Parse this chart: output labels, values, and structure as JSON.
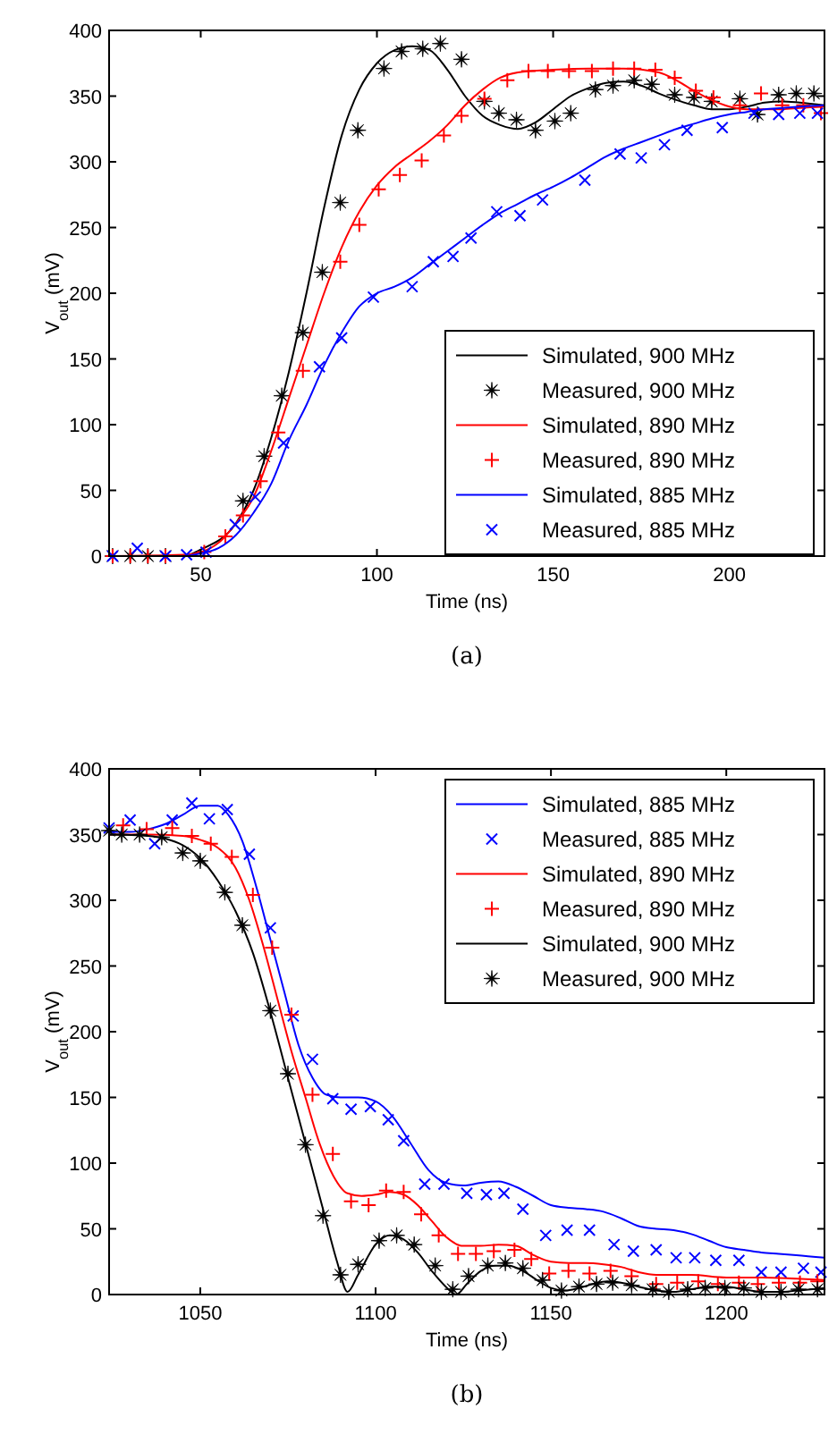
{
  "chart_data": [
    {
      "type": "line",
      "xlabel": "Time (ns)",
      "ylabel": "V$_{out}$ (mV)",
      "annotations": [
        "(a)"
      ],
      "xlim": [
        24,
        227
      ],
      "xticks": [
        50,
        100,
        150,
        200
      ],
      "ylim": [
        0,
        400
      ],
      "yticks": [
        0,
        50,
        100,
        150,
        200,
        250,
        300,
        350,
        400
      ],
      "grid": false,
      "legend": "bottom right",
      "series": [
        {
          "name": "Simulated, 900 MHz",
          "type": "line",
          "marker": "none",
          "color": "#000000",
          "x": [
            24,
            45,
            50,
            60,
            65,
            70,
            75,
            80,
            85,
            90,
            95,
            100,
            105,
            110,
            115,
            120,
            125,
            130,
            135,
            140,
            145,
            150,
            155,
            160,
            165,
            170,
            175,
            180,
            185,
            190,
            195,
            200,
            205,
            210,
            215,
            220,
            227
          ],
          "values": [
            0,
            0,
            5,
            25,
            50,
            90,
            140,
            200,
            265,
            320,
            355,
            375,
            385,
            388,
            385,
            370,
            350,
            335,
            328,
            325,
            330,
            340,
            350,
            356,
            360,
            361,
            358,
            352,
            347,
            343,
            340,
            340,
            342,
            345,
            346,
            345,
            343
          ]
        },
        {
          "name": "Measured, 900 MHz",
          "type": "scatter",
          "marker": "star",
          "color": "#000000",
          "x": [
            25,
            30,
            35,
            40,
            62,
            68,
            73,
            79,
            84.5,
            89.6,
            94.6,
            102,
            107,
            113,
            118,
            124,
            130.5,
            134.6,
            139.6,
            145,
            150.5,
            155,
            162,
            167,
            173,
            178,
            184.5,
            190,
            195,
            203,
            208,
            214,
            219,
            224
          ],
          "values": [
            0,
            0,
            0,
            0,
            42,
            76,
            122,
            170,
            216,
            269,
            324,
            371,
            384,
            386,
            390,
            378,
            346,
            337,
            332,
            324,
            331,
            337,
            355,
            358,
            362,
            359,
            351,
            349,
            346,
            348,
            336,
            351,
            352,
            352
          ]
        },
        {
          "name": "Simulated, 890 MHz",
          "type": "line",
          "marker": "none",
          "color": "#ff0000",
          "x": [
            24,
            45,
            50,
            55,
            60,
            65,
            70,
            75,
            80,
            85,
            90,
            95,
            100,
            105,
            110,
            115,
            120,
            125,
            130,
            135,
            140,
            150,
            160,
            170,
            180,
            185,
            190,
            195,
            200,
            205,
            210,
            215,
            220,
            227
          ],
          "values": [
            0,
            1,
            3,
            10,
            25,
            45,
            80,
            120,
            160,
            200,
            235,
            262,
            282,
            296,
            306,
            316,
            328,
            343,
            355,
            364,
            368,
            370,
            371,
            371,
            368,
            362,
            354,
            347,
            342,
            340,
            340,
            340,
            341,
            342
          ]
        },
        {
          "name": "Measured, 890 MHz",
          "type": "scatter",
          "marker": "cross",
          "color": "#ff0000",
          "x": [
            25,
            30,
            35,
            40,
            51,
            57,
            62,
            67,
            72,
            79,
            89.6,
            95,
            100.5,
            106.5,
            112.7,
            119,
            124,
            130.5,
            137,
            143,
            148.5,
            154.5,
            161,
            167,
            173,
            179,
            184.5,
            190.5,
            195.5,
            203,
            209,
            215,
            221,
            226
          ],
          "values": [
            0,
            0,
            0,
            0,
            3,
            15,
            31,
            57,
            94,
            141,
            224,
            252,
            279,
            290,
            301,
            320,
            335,
            348,
            362,
            369,
            369,
            369,
            369,
            371,
            371,
            370,
            364,
            354,
            349,
            343,
            352,
            343,
            343,
            337
          ]
        },
        {
          "name": "Simulated, 885 MHz",
          "type": "line",
          "marker": "none",
          "color": "#0000ff",
          "x": [
            24,
            45,
            50,
            55,
            60,
            65,
            70,
            75,
            80,
            85,
            90,
            95,
            100,
            105,
            110,
            115,
            120,
            125,
            130,
            135,
            140,
            145,
            150,
            155,
            160,
            165,
            170,
            175,
            180,
            185,
            190,
            195,
            200,
            205,
            210,
            215,
            220,
            227
          ],
          "values": [
            0,
            0,
            2,
            6,
            16,
            33,
            55,
            88,
            115,
            145,
            170,
            190,
            200,
            205,
            212,
            222,
            232,
            242,
            252,
            261,
            268,
            275,
            281,
            288,
            296,
            304,
            310,
            315,
            320,
            325,
            329,
            333,
            336,
            338,
            340,
            341,
            342,
            343
          ]
        },
        {
          "name": "Measured, 885 MHz",
          "type": "scatter",
          "marker": "x",
          "color": "#0000ff",
          "x": [
            25,
            32,
            40,
            46,
            51.5,
            59.8,
            65.5,
            73.5,
            83.7,
            90,
            99,
            110,
            116,
            121.6,
            126.7,
            134,
            140.6,
            147,
            159,
            169,
            175,
            181.6,
            188,
            198,
            207,
            214,
            220,
            225
          ],
          "values": [
            0,
            6,
            0,
            1,
            3,
            24,
            45,
            86,
            144,
            166,
            197,
            205,
            224,
            228,
            242,
            262,
            259,
            271,
            286,
            306,
            303,
            313,
            324,
            326,
            337,
            336,
            337,
            337
          ]
        }
      ]
    },
    {
      "type": "line",
      "xlabel": "Time (ns)",
      "ylabel": "V$_{out}$ (mV)",
      "annotations": [
        "(b)"
      ],
      "xlim": [
        1024,
        1228
      ],
      "xticks": [
        1050,
        1100,
        1150,
        1200
      ],
      "ylim": [
        0,
        400
      ],
      "yticks": [
        0,
        50,
        100,
        150,
        200,
        250,
        300,
        350,
        400
      ],
      "grid": false,
      "legend": "top right",
      "series": [
        {
          "name": "Simulated, 885 MHz",
          "type": "line",
          "marker": "none",
          "color": "#0000ff",
          "x": [
            1024,
            1030,
            1035,
            1040,
            1045,
            1050,
            1055,
            1058,
            1062,
            1066,
            1070,
            1074,
            1078,
            1082,
            1086,
            1090,
            1095,
            1100,
            1105,
            1110,
            1115,
            1120,
            1125,
            1130,
            1135,
            1140,
            1145,
            1150,
            1155,
            1160,
            1165,
            1170,
            1175,
            1180,
            1185,
            1190,
            1195,
            1200,
            1205,
            1210,
            1215,
            1220,
            1228
          ],
          "values": [
            352,
            352,
            354,
            358,
            365,
            372,
            372,
            365,
            345,
            310,
            270,
            230,
            190,
            165,
            152,
            150,
            150,
            147,
            135,
            115,
            95,
            85,
            83,
            85,
            86,
            82,
            75,
            68,
            66,
            65,
            63,
            58,
            52,
            50,
            49,
            46,
            41,
            36,
            34,
            32,
            31,
            30,
            28
          ]
        },
        {
          "name": "Measured, 885 MHz",
          "type": "scatter",
          "marker": "x",
          "color": "#0000ff",
          "x": [
            1024,
            1030,
            1037,
            1042,
            1047.6,
            1052.6,
            1057.7,
            1064,
            1070,
            1076.5,
            1082,
            1087.8,
            1093,
            1098.5,
            1103.6,
            1108,
            1114,
            1119.5,
            1126,
            1131.6,
            1136.6,
            1142,
            1148.5,
            1154.6,
            1161,
            1168,
            1173.5,
            1180,
            1185.7,
            1191,
            1197,
            1203.6,
            1210,
            1215.6,
            1222,
            1227
          ],
          "values": [
            355,
            361,
            343,
            361,
            374,
            362,
            369,
            335,
            279,
            212,
            179,
            149,
            141,
            143,
            133,
            117,
            84,
            84,
            77,
            76,
            77,
            65,
            45,
            49,
            49,
            38,
            33,
            34,
            28,
            28,
            26,
            26,
            17,
            17,
            20,
            17
          ]
        },
        {
          "name": "Simulated, 890 MHz",
          "type": "line",
          "marker": "none",
          "color": "#ff0000",
          "x": [
            1024,
            1035,
            1045,
            1050,
            1055,
            1060,
            1064,
            1068,
            1072,
            1076,
            1080,
            1084,
            1088,
            1092,
            1096,
            1100,
            1104,
            1108,
            1112,
            1116,
            1120,
            1125,
            1130,
            1135,
            1140,
            1145,
            1150,
            1155,
            1160,
            1165,
            1170,
            1175,
            1180,
            1190,
            1200,
            1210,
            1220,
            1228
          ],
          "values": [
            350,
            350,
            349,
            346,
            340,
            325,
            300,
            265,
            225,
            185,
            150,
            115,
            90,
            77,
            75,
            76,
            78,
            76,
            68,
            56,
            44,
            37,
            37,
            38,
            37,
            30,
            25,
            24,
            24,
            23,
            21,
            17,
            15,
            15,
            13,
            13,
            12,
            11
          ]
        },
        {
          "name": "Measured, 890 MHz",
          "type": "scatter",
          "marker": "cross",
          "color": "#ff0000",
          "x": [
            1028,
            1034.7,
            1042,
            1047.6,
            1053,
            1059,
            1065,
            1070.5,
            1076,
            1082,
            1087.8,
            1093,
            1098,
            1103,
            1108,
            1113,
            1118,
            1123.5,
            1128.6,
            1133.7,
            1139.6,
            1144.4,
            1149.5,
            1155,
            1161,
            1167,
            1173,
            1180,
            1186,
            1192,
            1197.6,
            1203.6,
            1209,
            1215,
            1221,
            1226
          ],
          "values": [
            357,
            354,
            355,
            349,
            343,
            333,
            304,
            264,
            213,
            152,
            107,
            71,
            68,
            79,
            78,
            61,
            45,
            31,
            31,
            33,
            34,
            27,
            16,
            18,
            16,
            18,
            14,
            8,
            9,
            10,
            8,
            9,
            8,
            9,
            9,
            10
          ]
        },
        {
          "name": "Simulated, 900 MHz",
          "type": "line",
          "marker": "none",
          "color": "#000000",
          "x": [
            1024,
            1035,
            1040,
            1045,
            1050,
            1055,
            1060,
            1065,
            1070,
            1075,
            1080,
            1085,
            1089,
            1092,
            1095,
            1100,
            1104,
            1108,
            1112,
            1116,
            1120,
            1123,
            1126,
            1130,
            1134,
            1138,
            1142,
            1146,
            1150,
            1154,
            1158,
            1162,
            1166,
            1170,
            1175,
            1180,
            1185,
            1190,
            1195,
            1200,
            1205,
            1210,
            1215,
            1220,
            1228
          ],
          "values": [
            350,
            349,
            347,
            342,
            332,
            315,
            292,
            260,
            215,
            165,
            115,
            65,
            25,
            2,
            15,
            38,
            45,
            42,
            32,
            18,
            6,
            0,
            8,
            18,
            22,
            22,
            18,
            11,
            5,
            3,
            5,
            8,
            10,
            9,
            6,
            3,
            2,
            4,
            6,
            6,
            4,
            2,
            2,
            3,
            5
          ]
        },
        {
          "name": "Measured, 900 MHz",
          "type": "scatter",
          "marker": "star",
          "color": "#000000",
          "x": [
            1024,
            1027.6,
            1032.7,
            1039,
            1045,
            1050,
            1057,
            1062,
            1070,
            1075,
            1080,
            1085,
            1090,
            1095,
            1101,
            1106,
            1111,
            1117,
            1122,
            1126.5,
            1132,
            1137,
            1142,
            1147.6,
            1153,
            1158,
            1163,
            1167.6,
            1173,
            1179,
            1183.6,
            1189,
            1194,
            1199.6,
            1205,
            1210,
            1215.6,
            1220.6,
            1226
          ],
          "values": [
            353,
            350,
            350,
            348,
            336,
            330,
            306,
            281,
            216,
            168,
            114,
            60,
            15,
            23,
            41,
            45,
            38,
            22,
            4,
            14,
            22,
            24,
            20,
            11,
            3,
            6,
            8,
            9,
            7,
            4,
            2,
            4,
            5,
            5,
            5,
            2,
            2,
            4,
            4
          ]
        }
      ]
    }
  ]
}
